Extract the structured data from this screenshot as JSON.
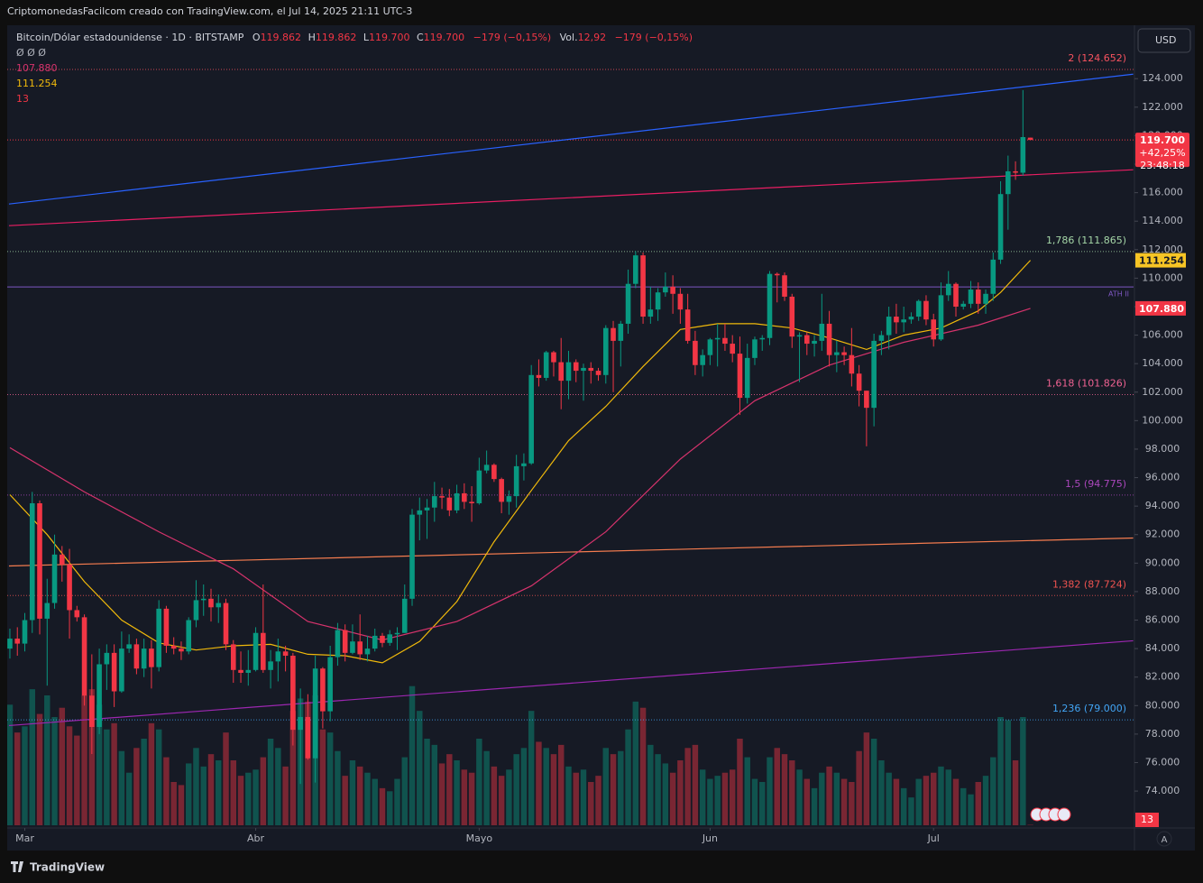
{
  "header": {
    "attribution": "CriptomonedasFacilcom creado con TradingView.com, el Jul 14, 2025 21:11 UTC-3",
    "currency_button": "USD"
  },
  "legend": {
    "symbol": "Bitcoin/Dólar estadounidense · 1D · BITSTAMP",
    "o_key": "O",
    "o": "119.862",
    "h_key": "H",
    "h": "119.862",
    "l_key": "L",
    "l": "119.700",
    "c_key": "C",
    "c": "119.700",
    "change": "−179 (−0,15%)",
    "vol_key": "Vol.",
    "vol": "12,92",
    "vol_change": "−179 (−0,15%)"
  },
  "indicators": {
    "placeholders": "Ø Ø Ø",
    "volume_label": "13"
  },
  "footer": {
    "brand": "TradingView",
    "auto_button": "A"
  },
  "chart_data": {
    "type": "candlestick",
    "up_color": "#089981",
    "down_color": "#f23645",
    "xlim": [
      -0.36,
      150.85
    ],
    "xticks": [
      {
        "value": 2,
        "label": "Mar"
      },
      {
        "value": 33,
        "label": "Abr"
      },
      {
        "value": 63,
        "label": "Mayo"
      },
      {
        "value": 94,
        "label": "Jun"
      },
      {
        "value": 124,
        "label": "Jul"
      }
    ],
    "ylim": [
      71600,
      127750
    ],
    "yticks": [
      {
        "value": 74000,
        "label": "74.000"
      },
      {
        "value": 76000,
        "label": "76.000"
      },
      {
        "value": 78000,
        "label": "78.000"
      },
      {
        "value": 80000,
        "label": "80.000"
      },
      {
        "value": 82000,
        "label": "82.000"
      },
      {
        "value": 84000,
        "label": "84.000"
      },
      {
        "value": 86000,
        "label": "86.000"
      },
      {
        "value": 88000,
        "label": "88.000"
      },
      {
        "value": 90000,
        "label": "90.000"
      },
      {
        "value": 92000,
        "label": "92.000"
      },
      {
        "value": 94000,
        "label": "94.000"
      },
      {
        "value": 96000,
        "label": "96.000"
      },
      {
        "value": 98000,
        "label": "98.000"
      },
      {
        "value": 100000,
        "label": "100.000"
      },
      {
        "value": 102000,
        "label": "102.000"
      },
      {
        "value": 104000,
        "label": "104.000"
      },
      {
        "value": 106000,
        "label": "106.000"
      },
      {
        "value": 108000,
        "label": "108.000"
      },
      {
        "value": 110000,
        "label": "110.000"
      },
      {
        "value": 112000,
        "label": "112.000"
      },
      {
        "value": 114000,
        "label": "114.000"
      },
      {
        "value": 116000,
        "label": "116.000"
      },
      {
        "value": 118000,
        "label": "118.000"
      },
      {
        "value": 120000,
        "label": "120.000"
      },
      {
        "value": 122000,
        "label": "122.000"
      },
      {
        "value": 124000,
        "label": "124.000"
      }
    ],
    "grid": false,
    "open": [
      84000,
      84700,
      84350,
      86000,
      94200,
      86100,
      87200,
      90600,
      89900,
      86700,
      86200,
      80700,
      78500,
      82900,
      83700,
      81000,
      84000,
      84300,
      82600,
      84000,
      82700,
      86800,
      84200,
      84000,
      83800,
      86000,
      87400,
      87500,
      86900,
      87200,
      84300,
      82500,
      82300,
      82500,
      85100,
      82500,
      83100,
      83800,
      83500,
      78300,
      79200,
      76300,
      82600,
      79600,
      83400,
      85300,
      83700,
      84500,
      83600,
      84000,
      84900,
      84400,
      85000,
      85100,
      87500,
      93400,
      93700,
      93900,
      94700,
      94600,
      93700,
      94900,
      94300,
      94200,
      96500,
      96900,
      95900,
      94300,
      94700,
      96800,
      97000,
      103200,
      103000,
      104800,
      104100,
      102800,
      104100,
      103500,
      103700,
      103500,
      103200,
      106500,
      105600,
      106800,
      109600,
      111600,
      107300,
      107800,
      109000,
      109400,
      108900,
      107800,
      105600,
      103900,
      104600,
      105700,
      105800,
      105400,
      104700,
      101600,
      104400,
      105700,
      105800,
      110300,
      110200,
      108700,
      105900,
      106000,
      105400,
      105600,
      106800,
      104600,
      104800,
      104600,
      103300,
      102100,
      100900,
      105600,
      106000,
      107300,
      106900,
      107100,
      107300,
      108400,
      107100,
      105700,
      108800,
      109600,
      108000,
      108200,
      109200,
      108200,
      108900,
      111300,
      115900,
      117500,
      117400,
      119862
    ],
    "high": [
      85400,
      85500,
      86500,
      95000,
      94400,
      88900,
      92000,
      91200,
      91000,
      87000,
      86400,
      83600,
      84000,
      84300,
      84300,
      85200,
      85000,
      84700,
      84700,
      84600,
      87400,
      87000,
      84800,
      84500,
      86200,
      88800,
      88500,
      88200,
      87800,
      87500,
      84600,
      83800,
      83900,
      85500,
      88500,
      83900,
      84700,
      84200,
      83700,
      81200,
      80800,
      83500,
      82700,
      84200,
      85800,
      85700,
      85700,
      86400,
      84900,
      85400,
      85100,
      85300,
      85500,
      88500,
      93800,
      94600,
      94500,
      95700,
      95300,
      95200,
      95500,
      95600,
      95400,
      97400,
      97900,
      97000,
      96000,
      95100,
      97600,
      97700,
      103900,
      104300,
      104900,
      104900,
      105800,
      104900,
      104300,
      104000,
      104100,
      103700,
      106700,
      107000,
      107000,
      110600,
      111900,
      111800,
      109400,
      109300,
      110400,
      110200,
      109300,
      108900,
      106300,
      105000,
      105800,
      106800,
      106800,
      106000,
      105900,
      105400,
      105900,
      106000,
      110500,
      110400,
      110400,
      108900,
      106200,
      106200,
      106000,
      108900,
      107700,
      105600,
      105200,
      106500,
      103900,
      102100,
      106100,
      106300,
      108000,
      108200,
      108000,
      107600,
      108500,
      108800,
      107500,
      109700,
      110500,
      109700,
      108400,
      109800,
      109700,
      109200,
      111800,
      116800,
      118600,
      118200,
      123200,
      119862
    ],
    "low": [
      83300,
      83500,
      83800,
      85100,
      85000,
      81400,
      86800,
      88700,
      84700,
      85900,
      80000,
      76600,
      78000,
      81100,
      79900,
      80900,
      83700,
      82200,
      82000,
      81200,
      82400,
      83700,
      83600,
      83200,
      83600,
      85500,
      86300,
      85900,
      85800,
      83900,
      81600,
      81600,
      81400,
      82400,
      82300,
      81200,
      81700,
      82400,
      77200,
      74500,
      76200,
      74600,
      78400,
      78900,
      82800,
      83100,
      83600,
      83200,
      83100,
      83800,
      84100,
      84200,
      83900,
      85100,
      87000,
      91600,
      91700,
      92900,
      93800,
      93300,
      93500,
      93800,
      92900,
      94100,
      96300,
      95700,
      93500,
      93400,
      93900,
      95800,
      96900,
      102400,
      102800,
      103100,
      100800,
      101500,
      102700,
      101400,
      102600,
      102800,
      102600,
      102000,
      103800,
      106100,
      109300,
      106800,
      106800,
      107000,
      108700,
      107500,
      106800,
      105400,
      103200,
      103100,
      103900,
      103800,
      104900,
      104100,
      100400,
      101200,
      103900,
      104900,
      105300,
      108300,
      108400,
      105100,
      102700,
      104600,
      104500,
      104900,
      103800,
      103400,
      103900,
      102400,
      101000,
      98200,
      99600,
      104600,
      105000,
      106100,
      106200,
      106800,
      107000,
      106700,
      105200,
      105600,
      108400,
      107300,
      107800,
      107900,
      107500,
      107500,
      108400,
      111000,
      113400,
      116900,
      117200,
      119700
    ],
    "close": [
      84700,
      84350,
      86000,
      94200,
      86100,
      87200,
      90600,
      89900,
      86700,
      86200,
      80700,
      78500,
      82900,
      83700,
      81000,
      84000,
      84300,
      82600,
      84000,
      82700,
      86800,
      84200,
      84000,
      83800,
      86000,
      87400,
      87500,
      86900,
      87200,
      84300,
      82500,
      82300,
      82500,
      85100,
      82500,
      83100,
      83800,
      83500,
      78300,
      79200,
      76300,
      82600,
      79600,
      83400,
      85300,
      83700,
      84500,
      83600,
      84000,
      84900,
      84400,
      85000,
      85100,
      87500,
      93400,
      93700,
      93900,
      94700,
      94600,
      93700,
      94900,
      94300,
      94200,
      96500,
      96900,
      95900,
      94300,
      94700,
      96800,
      97000,
      103200,
      103000,
      104800,
      104100,
      102800,
      104100,
      103500,
      103700,
      103500,
      103200,
      106500,
      105600,
      106800,
      109600,
      111600,
      107300,
      107800,
      109000,
      109400,
      108900,
      107800,
      105600,
      103900,
      104600,
      105700,
      105800,
      105400,
      104700,
      101600,
      104400,
      105700,
      105800,
      110300,
      110200,
      108700,
      105900,
      106000,
      105400,
      105600,
      106800,
      104600,
      104800,
      104600,
      103300,
      102100,
      100900,
      105600,
      106000,
      107300,
      106900,
      107100,
      107300,
      108400,
      107100,
      105700,
      108800,
      109600,
      108000,
      108200,
      109200,
      108200,
      108900,
      111300,
      115900,
      117500,
      117400,
      119900,
      119700
    ],
    "volume": [
      3900,
      3000,
      3200,
      4400,
      3600,
      4200,
      3500,
      3800,
      3200,
      2900,
      4200,
      4400,
      3900,
      3100,
      3300,
      2400,
      1700,
      2500,
      2800,
      3300,
      3100,
      2200,
      1400,
      1300,
      2000,
      2500,
      1900,
      2300,
      2100,
      3000,
      2100,
      1600,
      1700,
      1800,
      2200,
      2800,
      2500,
      1900,
      3700,
      4100,
      4000,
      4200,
      3100,
      3000,
      2400,
      1600,
      2100,
      1900,
      1700,
      1500,
      1200,
      1100,
      1500,
      2200,
      4500,
      3700,
      2800,
      2600,
      2000,
      2300,
      2100,
      1800,
      1700,
      2800,
      2400,
      1900,
      1600,
      1800,
      2300,
      2500,
      3700,
      2700,
      2500,
      2300,
      2600,
      1900,
      1700,
      1800,
      1400,
      1600,
      2500,
      2300,
      2400,
      3100,
      4000,
      3800,
      2600,
      2300,
      2000,
      1700,
      2100,
      2500,
      2600,
      1800,
      1500,
      1600,
      1700,
      1800,
      2800,
      2200,
      1500,
      1400,
      2200,
      2500,
      2300,
      2100,
      1800,
      1500,
      1200,
      1700,
      1900,
      1700,
      1500,
      1400,
      2400,
      3000,
      2800,
      2100,
      1700,
      1500,
      1200,
      900,
      1500,
      1600,
      1700,
      1900,
      1800,
      1500,
      1200,
      1000,
      1400,
      1600,
      2200,
      3500,
      3400,
      2100,
      3500,
      12.92
    ],
    "volume_ylim": [
      0,
      7000
    ],
    "moving_averages": [
      {
        "color": "#f0b90b",
        "last_label": "111.254",
        "last_bg": "#f7c525",
        "x": [
          0,
          5,
          10,
          15,
          20,
          25,
          30,
          35,
          40,
          45,
          50,
          55,
          60,
          65,
          70,
          75,
          80,
          85,
          90,
          95,
          100,
          105,
          110,
          115,
          120,
          125,
          130,
          133,
          137
        ],
        "values": [
          94800,
          92000,
          88700,
          86000,
          84400,
          83900,
          84200,
          84300,
          83600,
          83500,
          83000,
          84500,
          87300,
          91500,
          95100,
          98600,
          101000,
          103800,
          106400,
          106800,
          106800,
          106500,
          105800,
          105000,
          106000,
          106500,
          107700,
          109000,
          111254
        ]
      },
      {
        "color": "#d6336c",
        "last_label": "107.880",
        "last_bg": "#f23645",
        "x": [
          0,
          10,
          20,
          30,
          40,
          50,
          60,
          70,
          80,
          90,
          100,
          110,
          120,
          130,
          137
        ],
        "values": [
          98100,
          95000,
          92200,
          89600,
          85900,
          84600,
          85900,
          88400,
          92200,
          97300,
          101400,
          103900,
          105500,
          106700,
          107880
        ]
      }
    ],
    "trend_lines": [
      {
        "color": "#2962ff",
        "x": [
          -0.12,
          150.8
        ],
        "values": [
          115205,
          124316
        ]
      },
      {
        "color": "#e91e63",
        "x": [
          -0.12,
          150.8
        ],
        "values": [
          113686,
          117610
        ]
      },
      {
        "color": "#f57c4f",
        "x": [
          -0.12,
          150.8
        ],
        "values": [
          89800,
          91760
        ]
      },
      {
        "color": "#9c27b0",
        "x": [
          -0.12,
          150.8
        ],
        "values": [
          78600,
          84550
        ]
      }
    ],
    "levels": [
      {
        "label": "2 (124.652)",
        "value": 124652,
        "color": "#f7525f"
      },
      {
        "label": "1,786 (111.865)",
        "value": 111865,
        "color": "#a5d6a7"
      },
      {
        "label": "1,618 (101.826)",
        "value": 101826,
        "color": "#f06292"
      },
      {
        "label": "1,5 (94.775)",
        "value": 94775,
        "color": "#ab47bc"
      },
      {
        "label": "1,382 (87.724)",
        "value": 87724,
        "color": "#ef5350"
      },
      {
        "label": "1,236 (79.000)",
        "value": 79000,
        "color": "#42a5f5"
      }
    ],
    "ath_line": {
      "label": "ATH II",
      "value": 109383,
      "color": "#7e57c2"
    },
    "last_price": {
      "value": 119700,
      "label": "119.700",
      "change": "+42,25%",
      "countdown": "23:48:18",
      "color": "#f23645"
    }
  }
}
